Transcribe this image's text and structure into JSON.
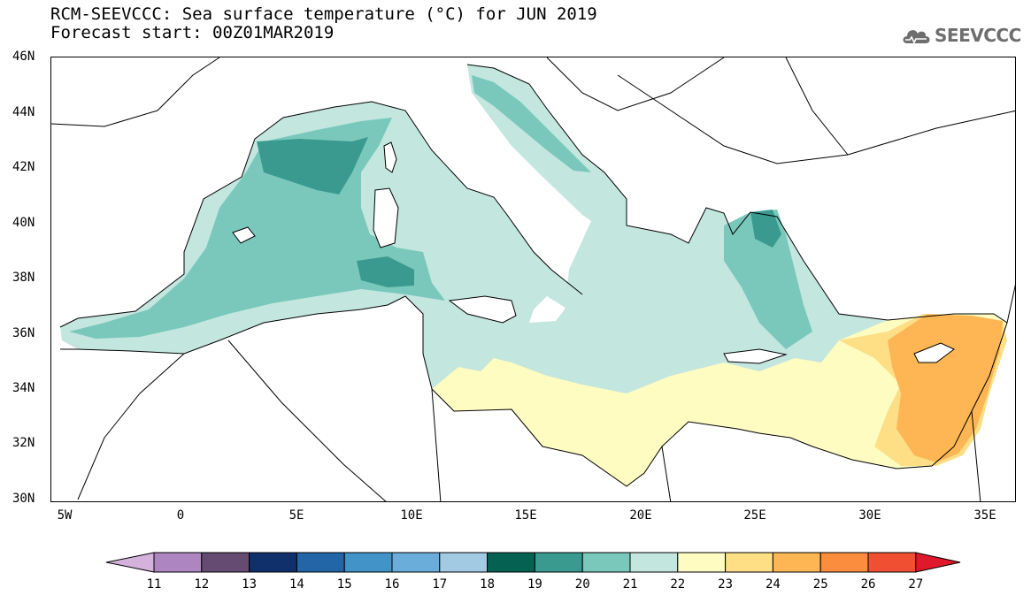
{
  "header": {
    "title": "RCM-SEEVCCC: Sea surface temperature (°C) for JUN 2019",
    "subtitle": "Forecast start: 00Z01MAR2019"
  },
  "logo": {
    "text": "SEEVCCC",
    "icon": "cloud-icon"
  },
  "map": {
    "lon_labels": [
      "5W",
      "0",
      "5E",
      "10E",
      "15E",
      "20E",
      "25E",
      "30E",
      "35E"
    ],
    "lat_labels": [
      "46N",
      "44N",
      "42N",
      "40N",
      "38N",
      "36N",
      "34N",
      "32N",
      "30N"
    ]
  },
  "colorbar": {
    "labels": [
      "11",
      "12",
      "13",
      "14",
      "15",
      "16",
      "17",
      "18",
      "19",
      "20",
      "21",
      "22",
      "23",
      "24",
      "25",
      "26",
      "27"
    ],
    "colors": [
      "#d5b2dc",
      "#ad85c0",
      "#654a72",
      "#10306c",
      "#2266a8",
      "#4193c8",
      "#6aaddb",
      "#a3cae3",
      "#056152",
      "#3a9a8f",
      "#7ac8bc",
      "#c3e6df",
      "#fefcc0",
      "#fedf86",
      "#fdb653",
      "#fb8d3f",
      "#f04f32",
      "#e0182b"
    ]
  }
}
